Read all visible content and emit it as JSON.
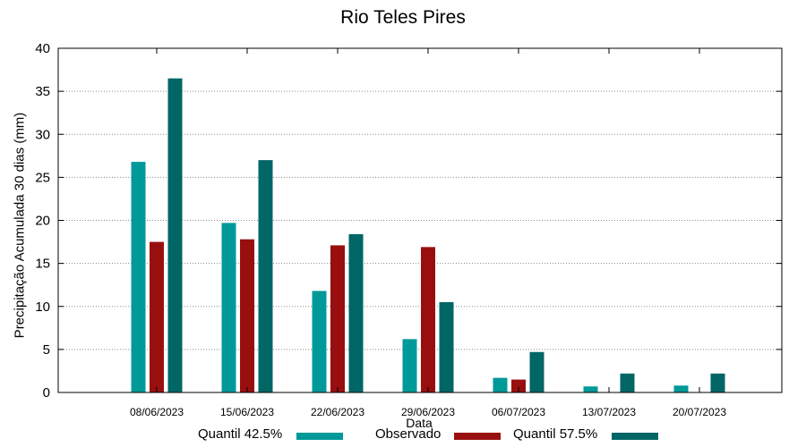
{
  "chart_data": {
    "type": "bar",
    "title": "Rio Teles Pires",
    "xlabel": "Data",
    "ylabel": "Precipitação Acumulada 30 dias (mm)",
    "ylim": [
      0,
      40
    ],
    "yticks": [
      0,
      5,
      10,
      15,
      20,
      25,
      30,
      35,
      40
    ],
    "grid": true,
    "legend_position": "bottom",
    "categories": [
      "08/06/2023",
      "15/06/2023",
      "22/06/2023",
      "29/06/2023",
      "06/07/2023",
      "13/07/2023",
      "20/07/2023"
    ],
    "series": [
      {
        "name": "Quantil 42.5%",
        "color": "#009999",
        "values": [
          26.8,
          19.7,
          11.8,
          6.2,
          1.7,
          0.7,
          0.8
        ]
      },
      {
        "name": "Observado",
        "color": "#990F0F",
        "values": [
          17.5,
          17.8,
          17.1,
          16.9,
          1.5,
          0,
          0
        ]
      },
      {
        "name": "Quantil 57.5%",
        "color": "#006666",
        "values": [
          36.5,
          27.0,
          18.4,
          10.5,
          4.7,
          2.2,
          2.2
        ]
      }
    ]
  }
}
